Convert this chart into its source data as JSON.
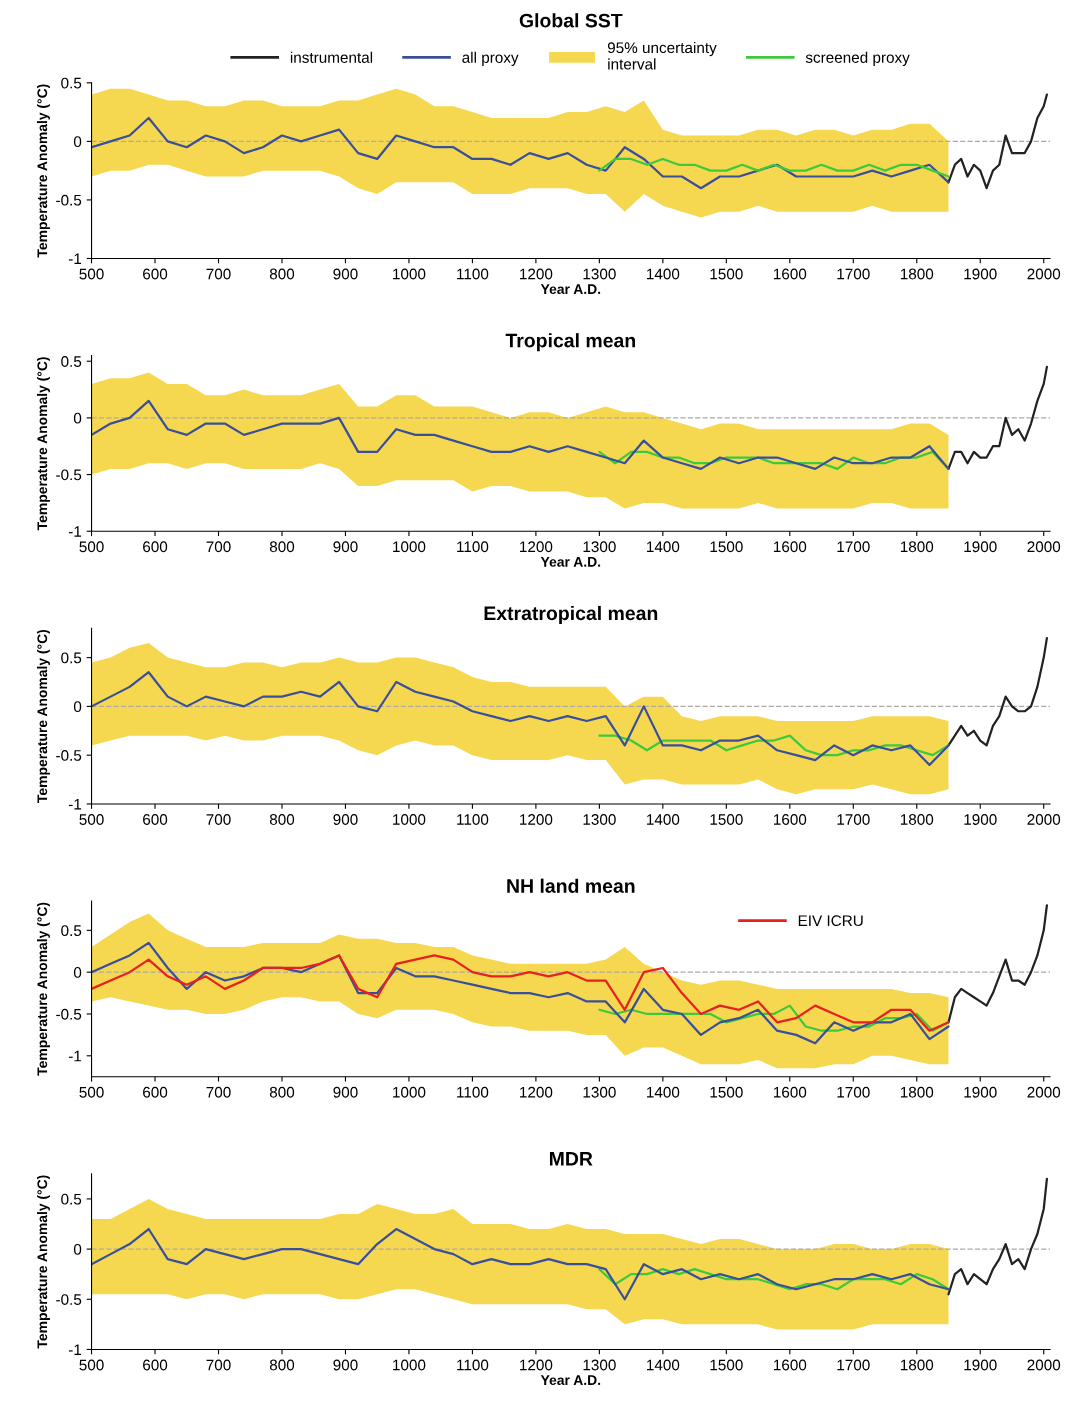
{
  "chart_data": [
    {
      "type": "line",
      "title": "Global SST",
      "xlabel": "Year A.D.",
      "ylabel": "Temperature Anomaly (°C)",
      "xlim": [
        500,
        2010
      ],
      "xticks": [
        500,
        600,
        700,
        800,
        900,
        1000,
        1100,
        1200,
        1300,
        1400,
        1500,
        1600,
        1700,
        1800,
        1900,
        2000
      ],
      "ylim": [
        -1,
        0.5
      ],
      "yticks": [
        -1,
        -0.5,
        0,
        0.5
      ],
      "legend": "top",
      "grid": false,
      "ref_lines": [
        {
          "axis": "y",
          "value": 0,
          "color": "#aaaaaa",
          "line_style": "dashed"
        }
      ],
      "series": [
        {
          "name": "instrumental",
          "color": "#222222",
          "x": [
            1850,
            1860,
            1870,
            1880,
            1890,
            1900,
            1910,
            1920,
            1930,
            1940,
            1950,
            1960,
            1970,
            1980,
            1990,
            2000,
            2005
          ],
          "values": [
            -0.35,
            -0.2,
            -0.15,
            -0.3,
            -0.2,
            -0.25,
            -0.4,
            -0.25,
            -0.2,
            0.05,
            -0.1,
            -0.1,
            -0.1,
            0.0,
            0.2,
            0.3,
            0.4
          ]
        },
        {
          "name": "all proxy",
          "color": "#3a4f9a",
          "x": [
            500,
            530,
            560,
            590,
            620,
            650,
            680,
            710,
            740,
            770,
            800,
            830,
            860,
            890,
            920,
            950,
            980,
            1010,
            1040,
            1070,
            1100,
            1130,
            1160,
            1190,
            1220,
            1250,
            1280,
            1310,
            1340,
            1370,
            1400,
            1430,
            1460,
            1490,
            1520,
            1550,
            1580,
            1610,
            1640,
            1670,
            1700,
            1730,
            1760,
            1790,
            1820,
            1850
          ],
          "values": [
            -0.05,
            0.0,
            0.05,
            0.2,
            0.0,
            -0.05,
            0.05,
            0.0,
            -0.1,
            -0.05,
            0.05,
            0.0,
            0.05,
            0.1,
            -0.1,
            -0.15,
            0.05,
            0.0,
            -0.05,
            -0.05,
            -0.15,
            -0.15,
            -0.2,
            -0.1,
            -0.15,
            -0.1,
            -0.2,
            -0.25,
            -0.05,
            -0.15,
            -0.3,
            -0.3,
            -0.4,
            -0.3,
            -0.3,
            -0.25,
            -0.2,
            -0.3,
            -0.3,
            -0.3,
            -0.3,
            -0.25,
            -0.3,
            -0.25,
            -0.2,
            -0.35
          ],
          "upper": [
            0.4,
            0.45,
            0.45,
            0.4,
            0.35,
            0.35,
            0.3,
            0.3,
            0.35,
            0.35,
            0.3,
            0.3,
            0.3,
            0.35,
            0.35,
            0.4,
            0.45,
            0.4,
            0.3,
            0.3,
            0.25,
            0.2,
            0.2,
            0.2,
            0.2,
            0.25,
            0.25,
            0.3,
            0.25,
            0.35,
            0.1,
            0.05,
            0.05,
            0.05,
            0.05,
            0.1,
            0.1,
            0.05,
            0.1,
            0.1,
            0.05,
            0.1,
            0.1,
            0.15,
            0.15,
            0.0
          ],
          "lower": [
            -0.3,
            -0.25,
            -0.25,
            -0.2,
            -0.2,
            -0.25,
            -0.3,
            -0.3,
            -0.3,
            -0.25,
            -0.25,
            -0.25,
            -0.25,
            -0.3,
            -0.4,
            -0.45,
            -0.35,
            -0.35,
            -0.35,
            -0.35,
            -0.45,
            -0.45,
            -0.45,
            -0.4,
            -0.4,
            -0.4,
            -0.45,
            -0.45,
            -0.6,
            -0.45,
            -0.55,
            -0.6,
            -0.65,
            -0.6,
            -0.6,
            -0.55,
            -0.6,
            -0.6,
            -0.6,
            -0.6,
            -0.6,
            -0.55,
            -0.6,
            -0.6,
            -0.6,
            -0.6
          ]
        },
        {
          "name": "95% uncertainty\ninterval",
          "type": "area",
          "color": "#f5d850"
        },
        {
          "name": "screened proxy",
          "color": "#3cc93c",
          "x": [
            1300,
            1325,
            1350,
            1375,
            1400,
            1425,
            1450,
            1475,
            1500,
            1525,
            1550,
            1575,
            1600,
            1625,
            1650,
            1675,
            1700,
            1725,
            1750,
            1775,
            1800,
            1825,
            1850
          ],
          "values": [
            -0.25,
            -0.15,
            -0.15,
            -0.2,
            -0.15,
            -0.2,
            -0.2,
            -0.25,
            -0.25,
            -0.2,
            -0.25,
            -0.2,
            -0.25,
            -0.25,
            -0.2,
            -0.25,
            -0.25,
            -0.2,
            -0.25,
            -0.2,
            -0.2,
            -0.25,
            -0.3
          ]
        }
      ]
    },
    {
      "type": "line",
      "title": "Tropical mean",
      "xlabel": "Year A.D.",
      "ylabel": "Temperature Anomaly (°C)",
      "xlim": [
        500,
        2010
      ],
      "xticks": [
        500,
        600,
        700,
        800,
        900,
        1000,
        1100,
        1200,
        1300,
        1400,
        1500,
        1600,
        1700,
        1800,
        1900,
        2000
      ],
      "ylim": [
        -1,
        0.55
      ],
      "yticks": [
        -1,
        -0.5,
        0,
        0.5
      ],
      "grid": false,
      "ref_lines": [
        {
          "axis": "y",
          "value": 0,
          "color": "#aaaaaa",
          "line_style": "dashed"
        }
      ],
      "series": [
        {
          "color": "#222222",
          "x": [
            1850,
            1860,
            1870,
            1880,
            1890,
            1900,
            1910,
            1920,
            1930,
            1940,
            1950,
            1960,
            1970,
            1980,
            1990,
            2000,
            2005
          ],
          "values": [
            -0.45,
            -0.3,
            -0.3,
            -0.4,
            -0.3,
            -0.35,
            -0.35,
            -0.25,
            -0.25,
            0.0,
            -0.15,
            -0.1,
            -0.2,
            -0.05,
            0.15,
            0.3,
            0.45
          ]
        },
        {
          "color": "#3cc93c",
          "x": [
            1300,
            1325,
            1350,
            1375,
            1400,
            1425,
            1450,
            1475,
            1500,
            1525,
            1550,
            1575,
            1600,
            1625,
            1650,
            1675,
            1700,
            1725,
            1750,
            1775,
            1800,
            1825,
            1850
          ],
          "values": [
            -0.3,
            -0.4,
            -0.3,
            -0.3,
            -0.35,
            -0.35,
            -0.4,
            -0.4,
            -0.35,
            -0.35,
            -0.35,
            -0.4,
            -0.4,
            -0.4,
            -0.4,
            -0.45,
            -0.35,
            -0.4,
            -0.4,
            -0.35,
            -0.35,
            -0.3,
            -0.45
          ]
        },
        {
          "color": "#3a4f9a",
          "x": [
            500,
            530,
            560,
            590,
            620,
            650,
            680,
            710,
            740,
            770,
            800,
            830,
            860,
            890,
            920,
            950,
            980,
            1010,
            1040,
            1070,
            1100,
            1130,
            1160,
            1190,
            1220,
            1250,
            1280,
            1310,
            1340,
            1370,
            1400,
            1430,
            1460,
            1490,
            1520,
            1550,
            1580,
            1610,
            1640,
            1670,
            1700,
            1730,
            1760,
            1790,
            1820,
            1850
          ],
          "values": [
            -0.15,
            -0.05,
            0.0,
            0.15,
            -0.1,
            -0.15,
            -0.05,
            -0.05,
            -0.15,
            -0.1,
            -0.05,
            -0.05,
            -0.05,
            0.0,
            -0.3,
            -0.3,
            -0.1,
            -0.15,
            -0.15,
            -0.2,
            -0.25,
            -0.3,
            -0.3,
            -0.25,
            -0.3,
            -0.25,
            -0.3,
            -0.35,
            -0.4,
            -0.2,
            -0.35,
            -0.4,
            -0.45,
            -0.35,
            -0.4,
            -0.35,
            -0.35,
            -0.4,
            -0.45,
            -0.35,
            -0.4,
            -0.4,
            -0.35,
            -0.35,
            -0.25,
            -0.45
          ],
          "upper": [
            0.3,
            0.35,
            0.35,
            0.4,
            0.3,
            0.3,
            0.2,
            0.2,
            0.25,
            0.2,
            0.2,
            0.2,
            0.25,
            0.3,
            0.1,
            0.1,
            0.2,
            0.2,
            0.1,
            0.1,
            0.1,
            0.05,
            0.0,
            0.05,
            0.05,
            0.0,
            0.05,
            0.1,
            0.05,
            0.05,
            0.0,
            -0.05,
            -0.1,
            -0.05,
            -0.05,
            -0.1,
            -0.1,
            -0.1,
            -0.1,
            -0.1,
            -0.1,
            -0.1,
            -0.1,
            -0.05,
            -0.05,
            -0.15
          ],
          "lower": [
            -0.5,
            -0.45,
            -0.45,
            -0.4,
            -0.4,
            -0.45,
            -0.4,
            -0.4,
            -0.45,
            -0.45,
            -0.45,
            -0.45,
            -0.4,
            -0.45,
            -0.6,
            -0.6,
            -0.55,
            -0.55,
            -0.55,
            -0.55,
            -0.65,
            -0.6,
            -0.6,
            -0.65,
            -0.65,
            -0.65,
            -0.7,
            -0.7,
            -0.8,
            -0.75,
            -0.75,
            -0.8,
            -0.8,
            -0.8,
            -0.8,
            -0.75,
            -0.8,
            -0.8,
            -0.8,
            -0.8,
            -0.8,
            -0.75,
            -0.75,
            -0.8,
            -0.8,
            -0.8
          ]
        }
      ]
    },
    {
      "type": "line",
      "title": "Extratropical mean",
      "ylabel": "Temperature Anomaly (°C)",
      "xlim": [
        500,
        2010
      ],
      "xticks": [
        500,
        600,
        700,
        800,
        900,
        1000,
        1100,
        1200,
        1300,
        1400,
        1500,
        1600,
        1700,
        1800,
        1900,
        2000
      ],
      "ylim": [
        -1,
        0.8
      ],
      "yticks": [
        -1,
        -0.5,
        0,
        0.5
      ],
      "grid": false,
      "ref_lines": [
        {
          "axis": "y",
          "value": 0,
          "color": "#aaaaaa",
          "line_style": "dashed"
        }
      ],
      "series": [
        {
          "color": "#222222",
          "x": [
            1850,
            1860,
            1870,
            1880,
            1890,
            1900,
            1910,
            1920,
            1930,
            1940,
            1950,
            1960,
            1970,
            1980,
            1990,
            2000,
            2005
          ],
          "values": [
            -0.4,
            -0.3,
            -0.2,
            -0.3,
            -0.25,
            -0.35,
            -0.4,
            -0.2,
            -0.1,
            0.1,
            0.0,
            -0.05,
            -0.05,
            0.0,
            0.2,
            0.5,
            0.7
          ]
        },
        {
          "color": "#3cc93c",
          "x": [
            1300,
            1325,
            1350,
            1375,
            1400,
            1425,
            1450,
            1475,
            1500,
            1525,
            1550,
            1575,
            1600,
            1625,
            1650,
            1675,
            1700,
            1725,
            1750,
            1775,
            1800,
            1825,
            1850
          ],
          "values": [
            -0.3,
            -0.3,
            -0.35,
            -0.45,
            -0.35,
            -0.35,
            -0.35,
            -0.35,
            -0.45,
            -0.4,
            -0.35,
            -0.35,
            -0.3,
            -0.45,
            -0.5,
            -0.5,
            -0.45,
            -0.45,
            -0.4,
            -0.4,
            -0.45,
            -0.5,
            -0.4
          ]
        },
        {
          "color": "#3a4f9a",
          "x": [
            500,
            530,
            560,
            590,
            620,
            650,
            680,
            710,
            740,
            770,
            800,
            830,
            860,
            890,
            920,
            950,
            980,
            1010,
            1040,
            1070,
            1100,
            1130,
            1160,
            1190,
            1220,
            1250,
            1280,
            1310,
            1340,
            1370,
            1400,
            1430,
            1460,
            1490,
            1520,
            1550,
            1580,
            1610,
            1640,
            1670,
            1700,
            1730,
            1760,
            1790,
            1820,
            1850
          ],
          "values": [
            0.0,
            0.1,
            0.2,
            0.35,
            0.1,
            0.0,
            0.1,
            0.05,
            0.0,
            0.1,
            0.1,
            0.15,
            0.1,
            0.25,
            0.0,
            -0.05,
            0.25,
            0.15,
            0.1,
            0.05,
            -0.05,
            -0.1,
            -0.15,
            -0.1,
            -0.15,
            -0.1,
            -0.15,
            -0.1,
            -0.4,
            0.0,
            -0.4,
            -0.4,
            -0.45,
            -0.35,
            -0.35,
            -0.3,
            -0.45,
            -0.5,
            -0.55,
            -0.4,
            -0.5,
            -0.4,
            -0.45,
            -0.4,
            -0.6,
            -0.4
          ],
          "upper": [
            0.45,
            0.5,
            0.6,
            0.65,
            0.5,
            0.45,
            0.4,
            0.4,
            0.45,
            0.45,
            0.4,
            0.45,
            0.45,
            0.5,
            0.45,
            0.45,
            0.5,
            0.5,
            0.45,
            0.4,
            0.3,
            0.25,
            0.25,
            0.2,
            0.2,
            0.2,
            0.2,
            0.2,
            0.0,
            0.1,
            0.1,
            -0.1,
            -0.15,
            -0.1,
            -0.1,
            -0.1,
            -0.15,
            -0.15,
            -0.15,
            -0.15,
            -0.15,
            -0.1,
            -0.1,
            -0.1,
            -0.1,
            -0.15
          ],
          "lower": [
            -0.4,
            -0.35,
            -0.3,
            -0.3,
            -0.3,
            -0.3,
            -0.35,
            -0.3,
            -0.35,
            -0.35,
            -0.3,
            -0.3,
            -0.3,
            -0.35,
            -0.45,
            -0.5,
            -0.4,
            -0.35,
            -0.4,
            -0.4,
            -0.5,
            -0.55,
            -0.55,
            -0.55,
            -0.55,
            -0.5,
            -0.55,
            -0.55,
            -0.8,
            -0.75,
            -0.75,
            -0.8,
            -0.8,
            -0.8,
            -0.8,
            -0.75,
            -0.85,
            -0.9,
            -0.85,
            -0.85,
            -0.85,
            -0.8,
            -0.85,
            -0.9,
            -0.9,
            -0.85
          ]
        }
      ]
    },
    {
      "type": "line",
      "title": "NH land mean",
      "ylabel": "Temperature Anomaly (°C)",
      "xlim": [
        500,
        2010
      ],
      "xticks": [
        500,
        600,
        700,
        800,
        900,
        1000,
        1100,
        1200,
        1300,
        1400,
        1500,
        1600,
        1700,
        1800,
        1900,
        2000
      ],
      "ylim": [
        -1.25,
        0.85
      ],
      "yticks": [
        -1,
        -0.5,
        0,
        0.5
      ],
      "legend": "top right",
      "grid": false,
      "ref_lines": [
        {
          "axis": "y",
          "value": 0,
          "color": "#aaaaaa",
          "line_style": "dashed"
        }
      ],
      "series": [
        {
          "color": "#222222",
          "x": [
            1850,
            1860,
            1870,
            1880,
            1890,
            1900,
            1910,
            1920,
            1930,
            1940,
            1950,
            1960,
            1970,
            1980,
            1990,
            2000,
            2005
          ],
          "values": [
            -0.6,
            -0.3,
            -0.2,
            -0.25,
            -0.3,
            -0.35,
            -0.4,
            -0.25,
            -0.05,
            0.15,
            -0.1,
            -0.1,
            -0.15,
            0.0,
            0.2,
            0.5,
            0.8
          ]
        },
        {
          "color": "#3cc93c",
          "x": [
            1300,
            1325,
            1350,
            1375,
            1400,
            1425,
            1450,
            1475,
            1500,
            1525,
            1550,
            1575,
            1600,
            1625,
            1650,
            1675,
            1700,
            1725,
            1750,
            1775,
            1800,
            1825,
            1850
          ],
          "values": [
            -0.45,
            -0.5,
            -0.45,
            -0.5,
            -0.5,
            -0.5,
            -0.5,
            -0.5,
            -0.6,
            -0.55,
            -0.5,
            -0.5,
            -0.4,
            -0.65,
            -0.7,
            -0.7,
            -0.65,
            -0.65,
            -0.55,
            -0.55,
            -0.5,
            -0.7,
            -0.6
          ]
        },
        {
          "color": "#3a4f9a",
          "x": [
            500,
            530,
            560,
            590,
            620,
            650,
            680,
            710,
            740,
            770,
            800,
            830,
            860,
            890,
            920,
            950,
            980,
            1010,
            1040,
            1070,
            1100,
            1130,
            1160,
            1190,
            1220,
            1250,
            1280,
            1310,
            1340,
            1370,
            1400,
            1430,
            1460,
            1490,
            1520,
            1550,
            1580,
            1610,
            1640,
            1670,
            1700,
            1730,
            1760,
            1790,
            1820,
            1850
          ],
          "values": [
            0.0,
            0.1,
            0.2,
            0.35,
            0.05,
            -0.2,
            0.0,
            -0.1,
            -0.05,
            0.05,
            0.05,
            0.0,
            0.1,
            0.2,
            -0.25,
            -0.25,
            0.05,
            -0.05,
            -0.05,
            -0.1,
            -0.15,
            -0.2,
            -0.25,
            -0.25,
            -0.3,
            -0.25,
            -0.35,
            -0.35,
            -0.6,
            -0.2,
            -0.45,
            -0.5,
            -0.75,
            -0.6,
            -0.55,
            -0.45,
            -0.7,
            -0.75,
            -0.85,
            -0.6,
            -0.7,
            -0.6,
            -0.6,
            -0.5,
            -0.8,
            -0.65
          ],
          "upper": [
            0.3,
            0.45,
            0.6,
            0.7,
            0.5,
            0.4,
            0.3,
            0.3,
            0.3,
            0.35,
            0.35,
            0.35,
            0.35,
            0.45,
            0.4,
            0.4,
            0.35,
            0.35,
            0.3,
            0.3,
            0.2,
            0.15,
            0.1,
            0.1,
            0.1,
            0.1,
            0.1,
            0.15,
            0.3,
            0.1,
            0.0,
            -0.1,
            -0.15,
            -0.1,
            -0.1,
            -0.15,
            -0.2,
            -0.2,
            -0.2,
            -0.2,
            -0.2,
            -0.2,
            -0.2,
            -0.25,
            -0.25,
            -0.3
          ],
          "lower": [
            -0.35,
            -0.3,
            -0.35,
            -0.4,
            -0.45,
            -0.45,
            -0.5,
            -0.5,
            -0.45,
            -0.35,
            -0.3,
            -0.3,
            -0.35,
            -0.35,
            -0.5,
            -0.55,
            -0.45,
            -0.45,
            -0.45,
            -0.5,
            -0.6,
            -0.65,
            -0.65,
            -0.7,
            -0.7,
            -0.7,
            -0.75,
            -0.75,
            -1.0,
            -0.9,
            -0.9,
            -1.0,
            -1.1,
            -1.1,
            -1.1,
            -1.05,
            -1.15,
            -1.15,
            -1.15,
            -1.1,
            -1.1,
            -1.0,
            -1.0,
            -1.05,
            -1.1,
            -1.1
          ]
        },
        {
          "name": "EIV ICRU",
          "color": "#e82020",
          "x": [
            500,
            530,
            560,
            590,
            620,
            650,
            680,
            710,
            740,
            770,
            800,
            830,
            860,
            890,
            920,
            950,
            980,
            1010,
            1040,
            1070,
            1100,
            1130,
            1160,
            1190,
            1220,
            1250,
            1280,
            1310,
            1340,
            1370,
            1400,
            1430,
            1460,
            1490,
            1520,
            1550,
            1580,
            1610,
            1640,
            1670,
            1700,
            1730,
            1760,
            1790,
            1820,
            1850
          ],
          "values": [
            -0.2,
            -0.1,
            0.0,
            0.15,
            -0.05,
            -0.15,
            -0.05,
            -0.2,
            -0.1,
            0.05,
            0.05,
            0.05,
            0.1,
            0.2,
            -0.2,
            -0.3,
            0.1,
            0.15,
            0.2,
            0.15,
            0.0,
            -0.05,
            -0.05,
            0.0,
            -0.05,
            0.0,
            -0.1,
            -0.1,
            -0.45,
            0.0,
            0.05,
            -0.25,
            -0.5,
            -0.4,
            -0.45,
            -0.35,
            -0.6,
            -0.55,
            -0.4,
            -0.5,
            -0.6,
            -0.6,
            -0.45,
            -0.45,
            -0.7,
            -0.6
          ]
        }
      ]
    },
    {
      "type": "line",
      "title": "MDR",
      "xlabel": "Year A.D.",
      "ylabel": "Temperature Anomaly (°C)",
      "xlim": [
        500,
        2010
      ],
      "xticks": [
        500,
        600,
        700,
        800,
        900,
        1000,
        1100,
        1200,
        1300,
        1400,
        1500,
        1600,
        1700,
        1800,
        1900,
        2000
      ],
      "ylim": [
        -1,
        0.75
      ],
      "yticks": [
        -1,
        -0.5,
        0,
        0.5
      ],
      "grid": false,
      "ref_lines": [
        {
          "axis": "y",
          "value": 0,
          "color": "#aaaaaa",
          "line_style": "dashed"
        }
      ],
      "series": [
        {
          "color": "#222222",
          "x": [
            1850,
            1860,
            1870,
            1880,
            1890,
            1900,
            1910,
            1920,
            1930,
            1940,
            1950,
            1960,
            1970,
            1980,
            1990,
            2000,
            2005
          ],
          "values": [
            -0.45,
            -0.25,
            -0.2,
            -0.35,
            -0.25,
            -0.3,
            -0.35,
            -0.2,
            -0.1,
            0.05,
            -0.15,
            -0.1,
            -0.2,
            0.0,
            0.15,
            0.4,
            0.7
          ]
        },
        {
          "color": "#3cc93c",
          "x": [
            1300,
            1325,
            1350,
            1375,
            1400,
            1425,
            1450,
            1475,
            1500,
            1525,
            1550,
            1575,
            1600,
            1625,
            1650,
            1675,
            1700,
            1725,
            1750,
            1775,
            1800,
            1825,
            1850
          ],
          "values": [
            -0.2,
            -0.35,
            -0.25,
            -0.25,
            -0.2,
            -0.25,
            -0.2,
            -0.25,
            -0.3,
            -0.3,
            -0.3,
            -0.35,
            -0.4,
            -0.35,
            -0.35,
            -0.4,
            -0.3,
            -0.3,
            -0.3,
            -0.35,
            -0.25,
            -0.3,
            -0.4
          ]
        },
        {
          "color": "#3a4f9a",
          "x": [
            500,
            530,
            560,
            590,
            620,
            650,
            680,
            710,
            740,
            770,
            800,
            830,
            860,
            890,
            920,
            950,
            980,
            1010,
            1040,
            1070,
            1100,
            1130,
            1160,
            1190,
            1220,
            1250,
            1280,
            1310,
            1340,
            1370,
            1400,
            1430,
            1460,
            1490,
            1520,
            1550,
            1580,
            1610,
            1640,
            1670,
            1700,
            1730,
            1760,
            1790,
            1820,
            1850
          ],
          "values": [
            -0.15,
            -0.05,
            0.05,
            0.2,
            -0.1,
            -0.15,
            0.0,
            -0.05,
            -0.1,
            -0.05,
            0.0,
            0.0,
            -0.05,
            -0.1,
            -0.15,
            0.05,
            0.2,
            0.1,
            0.0,
            -0.05,
            -0.15,
            -0.1,
            -0.15,
            -0.15,
            -0.1,
            -0.15,
            -0.15,
            -0.2,
            -0.5,
            -0.15,
            -0.25,
            -0.2,
            -0.3,
            -0.25,
            -0.3,
            -0.25,
            -0.35,
            -0.4,
            -0.35,
            -0.3,
            -0.3,
            -0.25,
            -0.3,
            -0.25,
            -0.35,
            -0.4
          ],
          "upper": [
            0.3,
            0.3,
            0.4,
            0.5,
            0.4,
            0.35,
            0.3,
            0.3,
            0.3,
            0.3,
            0.3,
            0.3,
            0.3,
            0.35,
            0.35,
            0.45,
            0.4,
            0.35,
            0.35,
            0.4,
            0.25,
            0.25,
            0.25,
            0.2,
            0.2,
            0.25,
            0.2,
            0.2,
            0.15,
            0.15,
            0.15,
            0.1,
            0.05,
            0.1,
            0.1,
            0.05,
            0.0,
            0.0,
            0.0,
            0.05,
            0.05,
            0.0,
            0.0,
            0.05,
            0.05,
            0.0
          ],
          "lower": [
            -0.45,
            -0.45,
            -0.45,
            -0.45,
            -0.45,
            -0.5,
            -0.45,
            -0.45,
            -0.5,
            -0.45,
            -0.45,
            -0.45,
            -0.45,
            -0.5,
            -0.5,
            -0.45,
            -0.4,
            -0.4,
            -0.45,
            -0.5,
            -0.55,
            -0.55,
            -0.55,
            -0.55,
            -0.55,
            -0.55,
            -0.6,
            -0.6,
            -0.75,
            -0.7,
            -0.7,
            -0.75,
            -0.75,
            -0.75,
            -0.75,
            -0.75,
            -0.8,
            -0.8,
            -0.8,
            -0.8,
            -0.8,
            -0.75,
            -0.75,
            -0.75,
            -0.75,
            -0.75
          ]
        }
      ]
    }
  ]
}
